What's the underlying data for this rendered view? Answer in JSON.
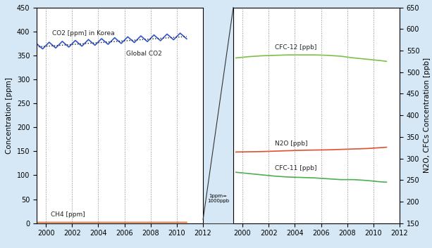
{
  "chart_data": [
    {
      "type": "line",
      "y_label": "Concentration [ppm]",
      "annotation": "1ppm=\n1000ppb",
      "x": [
        1999.25,
        1999.75,
        2000.25,
        2000.75,
        2001.25,
        2001.75,
        2002.25,
        2002.75,
        2003.25,
        2003.75,
        2004.25,
        2004.75,
        2005.25,
        2005.75,
        2006.25,
        2006.75,
        2007.25,
        2007.75,
        2008.25,
        2008.75,
        2009.25,
        2009.75,
        2010.25,
        2010.75
      ],
      "xlim": [
        1999.3,
        2012
      ],
      "xticks": [
        2000,
        2002,
        2004,
        2006,
        2008,
        2010,
        2012
      ],
      "ylim": [
        0,
        450
      ],
      "yticks": [
        0,
        50,
        100,
        150,
        200,
        250,
        300,
        350,
        400,
        450
      ],
      "grid": "x",
      "series": [
        {
          "name": "CO2 [ppm] in Korea",
          "color": "#3355cc",
          "line_style": "solid",
          "values": [
            375.5,
            363.5,
            377.4,
            365.4,
            379.3,
            367.3,
            381.2,
            369.2,
            383.1,
            371.1,
            385.0,
            373.0,
            386.9,
            374.9,
            388.8,
            376.8,
            390.7,
            378.7,
            392.6,
            380.6,
            394.5,
            382.5,
            396.4,
            384.4
          ]
        },
        {
          "name": "Global CO2",
          "color": "#222222",
          "line_style": "dotted",
          "values": [
            367.5,
            368.5,
            369.4,
            370.4,
            371.3,
            372.3,
            373.2,
            374.2,
            375.1,
            376.1,
            377.0,
            378.0,
            378.9,
            379.9,
            380.8,
            381.8,
            382.7,
            383.7,
            384.6,
            385.6,
            386.5,
            387.5,
            388.4,
            389.4
          ]
        },
        {
          "name": "CH4 [ppm]",
          "color": "#e8702a",
          "line_style": "solid",
          "values": [
            1.8,
            1.8,
            1.8,
            1.8,
            1.81,
            1.81,
            1.81,
            1.81,
            1.82,
            1.82,
            1.82,
            1.82,
            1.83,
            1.83,
            1.83,
            1.83,
            1.84,
            1.84,
            1.85,
            1.85,
            1.86,
            1.86,
            1.87,
            1.87
          ]
        }
      ]
    },
    {
      "type": "line",
      "y_label": "N2O, CFCs Concentration [ppb]",
      "x": [
        1999.5,
        2000.5,
        2001.5,
        2002.5,
        2003.5,
        2004.5,
        2005.5,
        2006.5,
        2007.5,
        2008.5,
        2009.5,
        2010.5,
        2011.0
      ],
      "xlim": [
        1999.3,
        2012
      ],
      "xticks": [
        2000,
        2002,
        2004,
        2006,
        2008,
        2010,
        2012
      ],
      "ylim": [
        150,
        650
      ],
      "yticks": [
        150,
        200,
        250,
        300,
        350,
        400,
        450,
        500,
        550,
        600,
        650
      ],
      "grid": "x",
      "series": [
        {
          "name": "CFC-12 [ppb]",
          "color": "#7cc04a",
          "line_style": "solid",
          "values": [
            533,
            536,
            538,
            539,
            540,
            540,
            540,
            539,
            537,
            533,
            530,
            527,
            525
          ]
        },
        {
          "name": "N2O [ppb]",
          "color": "#e05030",
          "line_style": "solid",
          "values": [
            315,
            315.5,
            316,
            317,
            318,
            319,
            319.5,
            320,
            321,
            322,
            323,
            325,
            326
          ]
        },
        {
          "name": "CFC-11 [ppb]",
          "color": "#4caf50",
          "line_style": "solid",
          "values": [
            268,
            265,
            262,
            259,
            257,
            256,
            255,
            253,
            251,
            251,
            249,
            246,
            245
          ]
        }
      ]
    }
  ]
}
